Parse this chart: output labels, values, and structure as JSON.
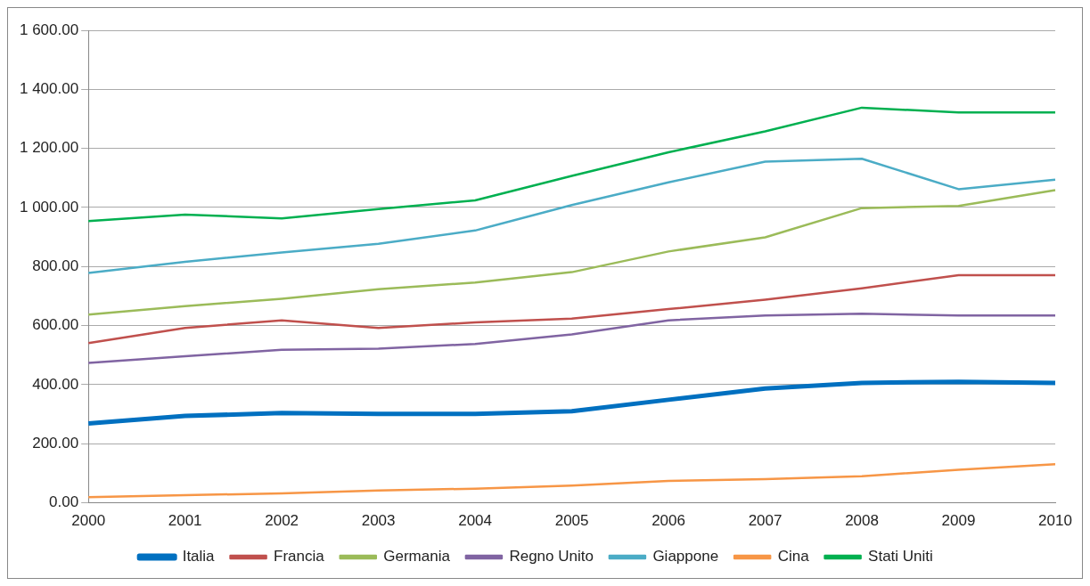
{
  "chart_data": {
    "type": "line",
    "categories": [
      "2000",
      "2001",
      "2002",
      "2003",
      "2004",
      "2005",
      "2006",
      "2007",
      "2008",
      "2009",
      "2010"
    ],
    "ylim": [
      0,
      1600
    ],
    "yticks": [
      {
        "value": 0,
        "label": "0.00"
      },
      {
        "value": 200,
        "label": "200.00"
      },
      {
        "value": 400,
        "label": "400.00"
      },
      {
        "value": 600,
        "label": "600.00"
      },
      {
        "value": 800,
        "label": "800.00"
      },
      {
        "value": 1000,
        "label": "1 000.00"
      },
      {
        "value": 1200,
        "label": "1 200.00"
      },
      {
        "value": 1400,
        "label": "1 400.00"
      },
      {
        "value": 1600,
        "label": "1 600.00"
      }
    ],
    "grid": "y",
    "legend": "bottom",
    "marker": "none",
    "line_style": "solid",
    "series": [
      {
        "name": "Italia",
        "color": "#0070c0",
        "values": [
          269,
          294,
          304,
          301,
          301,
          310,
          349,
          387,
          406,
          410,
          406
        ]
      },
      {
        "name": "Francia",
        "color": "#c0504d",
        "values": [
          541,
          592,
          618,
          592,
          611,
          624,
          656,
          688,
          726,
          771,
          771
        ]
      },
      {
        "name": "Germania",
        "color": "#9bbb59",
        "values": [
          637,
          666,
          691,
          723,
          746,
          781,
          851,
          899,
          998,
          1005,
          1059
        ]
      },
      {
        "name": "Regno Unito",
        "color": "#8064a2",
        "values": [
          474,
          496,
          518,
          522,
          538,
          570,
          618,
          634,
          640,
          634,
          634
        ]
      },
      {
        "name": "Giappone",
        "color": "#4bacc6",
        "values": [
          778,
          816,
          848,
          877,
          922,
          1008,
          1085,
          1155,
          1165,
          1062,
          1094
        ]
      },
      {
        "name": "Cina",
        "color": "#f79646",
        "values": [
          19,
          26,
          32,
          42,
          48,
          58,
          74,
          80,
          90,
          112,
          131
        ]
      },
      {
        "name": "Stati Uniti",
        "color": "#00b050",
        "values": [
          954,
          976,
          963,
          995,
          1024,
          1107,
          1187,
          1258,
          1338,
          1322,
          1322
        ]
      }
    ]
  }
}
